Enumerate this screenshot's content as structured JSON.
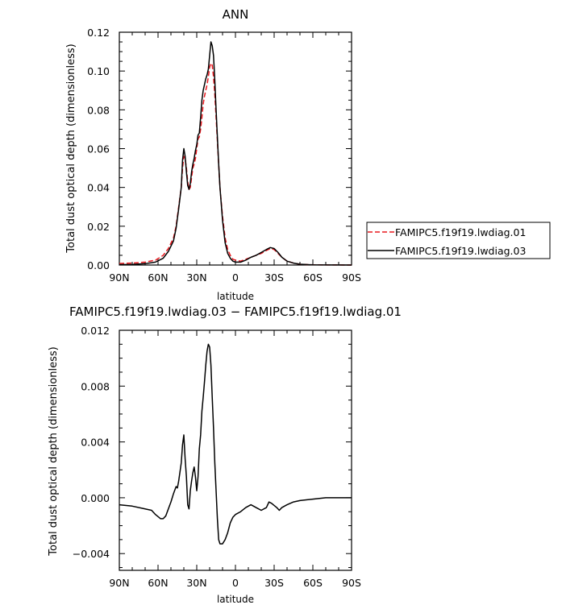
{
  "chart_data": [
    {
      "type": "line",
      "title": "ANN",
      "xlabel": "latitude",
      "ylabel": "Total dust optical depth (dimensionless)",
      "xlim": [
        90,
        -90
      ],
      "ylim": [
        0,
        0.12
      ],
      "xticks": [
        90,
        60,
        30,
        0,
        -30,
        -60,
        -90
      ],
      "xtick_labels": [
        "90N",
        "60N",
        "30N",
        "0",
        "30S",
        "60S",
        "90S"
      ],
      "yticks": [
        0,
        0.02,
        0.04,
        0.06,
        0.08,
        0.1,
        0.12
      ],
      "ytick_labels": [
        "0.00",
        "0.02",
        "0.04",
        "0.06",
        "0.08",
        "0.10",
        "0.12"
      ],
      "legend_position": "right",
      "series": [
        {
          "name": "FAMIPC5.f19f19.lwdiag.01",
          "color": "#e8181e",
          "dash": "dashed",
          "points": [
            [
              90,
              0.0008
            ],
            [
              80,
              0.001
            ],
            [
              70,
              0.0015
            ],
            [
              62,
              0.0025
            ],
            [
              56,
              0.005
            ],
            [
              52,
              0.0085
            ],
            [
              48,
              0.014
            ],
            [
              46,
              0.02
            ],
            [
              44,
              0.03
            ],
            [
              42,
              0.04
            ],
            [
              41,
              0.05
            ],
            [
              40,
              0.056
            ],
            [
              39,
              0.055
            ],
            [
              38,
              0.05
            ],
            [
              37,
              0.043
            ],
            [
              36,
              0.039
            ],
            [
              35,
              0.04
            ],
            [
              34,
              0.045
            ],
            [
              33,
              0.05
            ],
            [
              32,
              0.052
            ],
            [
              31,
              0.055
            ],
            [
              30,
              0.06
            ],
            [
              29,
              0.065
            ],
            [
              28,
              0.066
            ],
            [
              27,
              0.07
            ],
            [
              26,
              0.076
            ],
            [
              25,
              0.083
            ],
            [
              24,
              0.087
            ],
            [
              23,
              0.09
            ],
            [
              22,
              0.093
            ],
            [
              21,
              0.097
            ],
            [
              20,
              0.102
            ],
            [
              19,
              0.104
            ],
            [
              18,
              0.103
            ],
            [
              17,
              0.097
            ],
            [
              16,
              0.088
            ],
            [
              15,
              0.076
            ],
            [
              14,
              0.064
            ],
            [
              13,
              0.052
            ],
            [
              12,
              0.04
            ],
            [
              10,
              0.025
            ],
            [
              8,
              0.014
            ],
            [
              6,
              0.008
            ],
            [
              4,
              0.005
            ],
            [
              2,
              0.003
            ],
            [
              0,
              0.0025
            ],
            [
              -4,
              0.002
            ],
            [
              -8,
              0.003
            ],
            [
              -12,
              0.004
            ],
            [
              -16,
              0.005
            ],
            [
              -20,
              0.006
            ],
            [
              -24,
              0.0075
            ],
            [
              -27,
              0.0085
            ],
            [
              -30,
              0.008
            ],
            [
              -33,
              0.006
            ],
            [
              -36,
              0.004
            ],
            [
              -40,
              0.002
            ],
            [
              -45,
              0.001
            ],
            [
              -50,
              0.0004
            ],
            [
              -60,
              0.0001
            ],
            [
              -90,
              0
            ]
          ]
        },
        {
          "name": "FAMIPC5.f19f19.lwdiag.03",
          "color": "#000000",
          "dash": "solid",
          "points": [
            [
              90,
              0.0002
            ],
            [
              80,
              0.0003
            ],
            [
              70,
              0.0007
            ],
            [
              62,
              0.0015
            ],
            [
              56,
              0.0035
            ],
            [
              52,
              0.007
            ],
            [
              48,
              0.0125
            ],
            [
              46,
              0.019
            ],
            [
              44,
              0.029
            ],
            [
              42,
              0.04
            ],
            [
              41,
              0.054
            ],
            [
              40,
              0.06
            ],
            [
              39,
              0.056
            ],
            [
              38,
              0.048
            ],
            [
              37,
              0.041
            ],
            [
              36,
              0.039
            ],
            [
              35,
              0.042
            ],
            [
              34,
              0.048
            ],
            [
              33,
              0.052
            ],
            [
              32,
              0.055
            ],
            [
              31,
              0.059
            ],
            [
              30,
              0.062
            ],
            [
              29,
              0.067
            ],
            [
              28,
              0.068
            ],
            [
              27,
              0.076
            ],
            [
              26,
              0.085
            ],
            [
              25,
              0.09
            ],
            [
              24,
              0.093
            ],
            [
              23,
              0.096
            ],
            [
              22,
              0.098
            ],
            [
              21,
              0.101
            ],
            [
              20,
              0.108
            ],
            [
              19,
              0.115
            ],
            [
              18,
              0.113
            ],
            [
              17,
              0.108
            ],
            [
              16,
              0.095
            ],
            [
              15,
              0.08
            ],
            [
              14,
              0.066
            ],
            [
              13,
              0.052
            ],
            [
              12,
              0.04
            ],
            [
              10,
              0.023
            ],
            [
              8,
              0.0115
            ],
            [
              6,
              0.006
            ],
            [
              4,
              0.0035
            ],
            [
              2,
              0.002
            ],
            [
              0,
              0.0015
            ],
            [
              -4,
              0.0015
            ],
            [
              -8,
              0.0025
            ],
            [
              -12,
              0.004
            ],
            [
              -16,
              0.005
            ],
            [
              -20,
              0.0065
            ],
            [
              -24,
              0.008
            ],
            [
              -27,
              0.009
            ],
            [
              -30,
              0.0085
            ],
            [
              -33,
              0.0065
            ],
            [
              -36,
              0.004
            ],
            [
              -40,
              0.002
            ],
            [
              -45,
              0.001
            ],
            [
              -50,
              0.0004
            ],
            [
              -60,
              0.0001
            ],
            [
              -90,
              0
            ]
          ]
        }
      ]
    },
    {
      "type": "line",
      "title": "FAMIPC5.f19f19.lwdiag.03 − FAMIPC5.f19f19.lwdiag.01",
      "xlabel": "latitude",
      "ylabel": "Total dust optical depth (dimensionless)",
      "xlim": [
        90,
        -90
      ],
      "ylim": [
        -0.0052,
        0.012
      ],
      "xticks": [
        90,
        60,
        30,
        0,
        -30,
        -60,
        -90
      ],
      "xtick_labels": [
        "90N",
        "60N",
        "30N",
        "0",
        "30S",
        "60S",
        "90S"
      ],
      "yticks": [
        -0.004,
        0,
        0.004,
        0.008,
        0.012
      ],
      "ytick_labels": [
        "−0.004",
        "0.000",
        "0.004",
        "0.008",
        "0.012"
      ],
      "series": [
        {
          "color": "#000000",
          "dash": "solid",
          "points": [
            [
              90,
              -0.0005
            ],
            [
              80,
              -0.0006
            ],
            [
              70,
              -0.0008
            ],
            [
              65,
              -0.0009
            ],
            [
              62,
              -0.0012
            ],
            [
              58,
              -0.0015
            ],
            [
              56,
              -0.0015
            ],
            [
              54,
              -0.0013
            ],
            [
              52,
              -0.0008
            ],
            [
              50,
              -0.0003
            ],
            [
              48,
              0.0003
            ],
            [
              46,
              0.0008
            ],
            [
              45,
              0.0007
            ],
            [
              44,
              0.0012
            ],
            [
              42,
              0.0025
            ],
            [
              41,
              0.0038
            ],
            [
              40,
              0.0045
            ],
            [
              39,
              0.0028
            ],
            [
              38,
              0.0015
            ],
            [
              37,
              -0.0005
            ],
            [
              36,
              -0.0008
            ],
            [
              35,
              0.0005
            ],
            [
              34,
              0.0012
            ],
            [
              33,
              0.0018
            ],
            [
              32,
              0.0022
            ],
            [
              31,
              0.0015
            ],
            [
              30,
              0.0005
            ],
            [
              29,
              0.0015
            ],
            [
              28,
              0.0035
            ],
            [
              27,
              0.0045
            ],
            [
              26,
              0.0062
            ],
            [
              25,
              0.0072
            ],
            [
              24,
              0.0083
            ],
            [
              23,
              0.0095
            ],
            [
              22,
              0.0105
            ],
            [
              21,
              0.011
            ],
            [
              20,
              0.0108
            ],
            [
              19,
              0.0095
            ],
            [
              18,
              0.0072
            ],
            [
              17,
              0.005
            ],
            [
              16,
              0.0025
            ],
            [
              15,
              0.0005
            ],
            [
              14,
              -0.0015
            ],
            [
              13,
              -0.003
            ],
            [
              12,
              -0.0033
            ],
            [
              10,
              -0.0033
            ],
            [
              8,
              -0.003
            ],
            [
              6,
              -0.0025
            ],
            [
              4,
              -0.0018
            ],
            [
              2,
              -0.0014
            ],
            [
              0,
              -0.0012
            ],
            [
              -4,
              -0.001
            ],
            [
              -8,
              -0.0007
            ],
            [
              -12,
              -0.0005
            ],
            [
              -16,
              -0.0007
            ],
            [
              -20,
              -0.0009
            ],
            [
              -24,
              -0.0007
            ],
            [
              -26,
              -0.0003
            ],
            [
              -28,
              -0.0004
            ],
            [
              -32,
              -0.0007
            ],
            [
              -34,
              -0.0009
            ],
            [
              -36,
              -0.0007
            ],
            [
              -40,
              -0.0005
            ],
            [
              -45,
              -0.0003
            ],
            [
              -50,
              -0.0002
            ],
            [
              -60,
              -0.0001
            ],
            [
              -70,
              0
            ],
            [
              -90,
              0
            ]
          ]
        }
      ]
    }
  ]
}
